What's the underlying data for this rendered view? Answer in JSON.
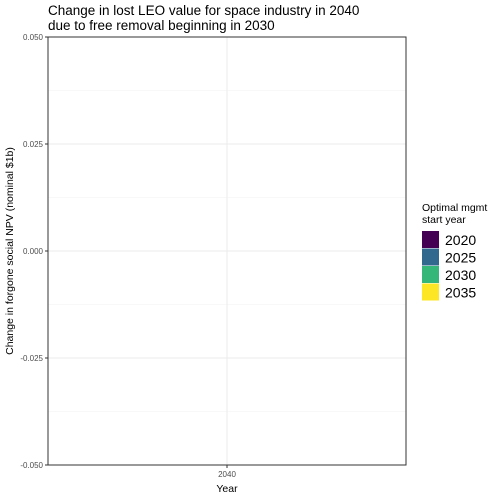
{
  "chart_data": {
    "type": "bar",
    "title_lines": [
      "Change in lost LEO value for space industry in 2040",
      "due to free removal beginning in 2030"
    ],
    "xlabel": "Year",
    "ylabel": "Change in forgone social NPV (nominal $1b)",
    "categories": [
      "2040"
    ],
    "x_tick_labels": [
      "2040"
    ],
    "ylim": [
      -0.05,
      0.05
    ],
    "y_ticks": [
      -0.05,
      -0.025,
      0,
      0.025,
      0.05
    ],
    "y_tick_labels": [
      "-0.050",
      "-0.025",
      "0.000",
      "0.025",
      "0.050"
    ],
    "grid": true,
    "legend": {
      "title_lines": [
        "Optimal mgmt",
        "start year"
      ],
      "placement": "right",
      "items": [
        {
          "label": "2020",
          "color": "#440154"
        },
        {
          "label": "2025",
          "color": "#31688E"
        },
        {
          "label": "2030",
          "color": "#35B779"
        },
        {
          "label": "2035",
          "color": "#FDE725"
        }
      ]
    },
    "series": []
  }
}
